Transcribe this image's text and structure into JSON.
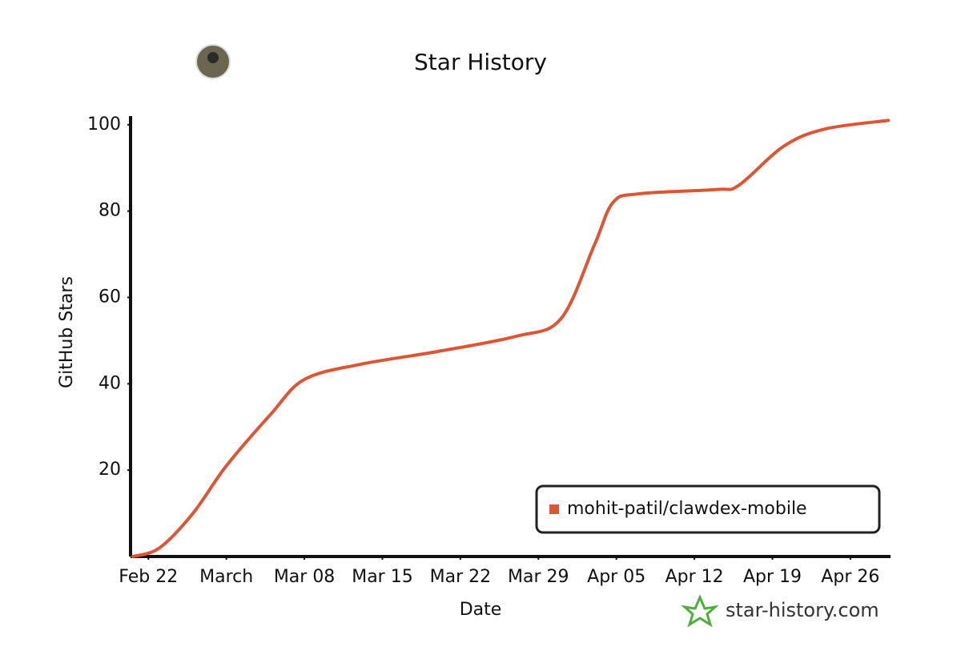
{
  "chart_data": {
    "type": "line",
    "title": "Star History",
    "x_label": "Date",
    "y_label": "GitHub Stars",
    "x": [
      51.6,
      54,
      57,
      60,
      64,
      67,
      72,
      79,
      86,
      90,
      93,
      94.7,
      97,
      104,
      106,
      110,
      113.7,
      119.4
    ],
    "series": [
      {
        "name": "mohit-patil/clawdex-mobile",
        "color": "#dd5533",
        "values": [
          0,
          2,
          10,
          21,
          33,
          41,
          44.5,
          47.5,
          51,
          55,
          72,
          82,
          84,
          85,
          86,
          95,
          99,
          101
        ]
      }
    ],
    "xlim": [
      51.4,
      119.6
    ],
    "xticks": [
      {
        "value": 53,
        "label": "Feb 22"
      },
      {
        "value": 60,
        "label": "March"
      },
      {
        "value": 67,
        "label": "Mar 08"
      },
      {
        "value": 74,
        "label": "Mar 15"
      },
      {
        "value": 81,
        "label": "Mar 22"
      },
      {
        "value": 88,
        "label": "Mar 29"
      },
      {
        "value": 95,
        "label": "Apr 05"
      },
      {
        "value": 102,
        "label": "Apr 12"
      },
      {
        "value": 109,
        "label": "Apr 19"
      },
      {
        "value": 116,
        "label": "Apr 26"
      }
    ],
    "ylim": [
      0,
      102
    ],
    "yticks": [
      20,
      40,
      60,
      80,
      100
    ],
    "legend": "bottom-right",
    "grid": false,
    "watermark": "star-history.com"
  }
}
